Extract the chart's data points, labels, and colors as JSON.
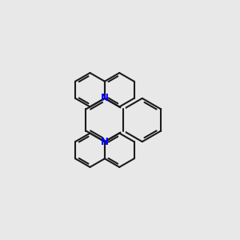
{
  "bg_color": "#e8e8e8",
  "line_color": "#1a1a1a",
  "N_color": "#0000ff",
  "line_width": 1.5,
  "fig_size": [
    3.0,
    3.0
  ],
  "dpi": 100
}
